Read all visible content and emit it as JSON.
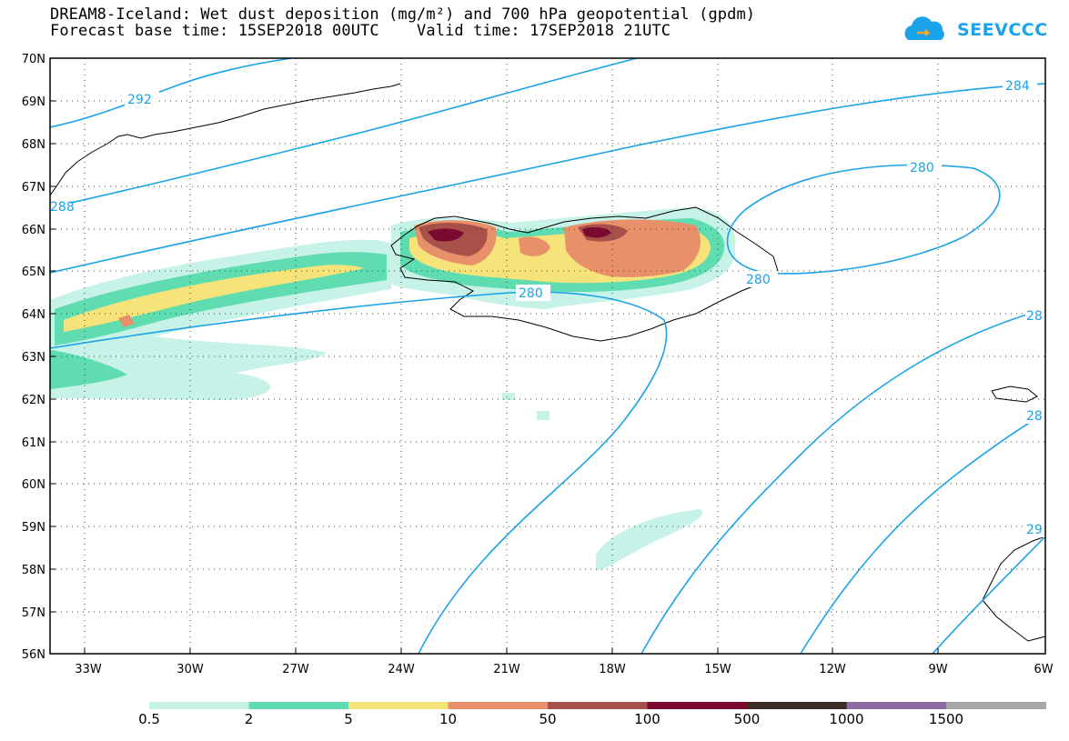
{
  "title_line1": "DREAM8-Iceland: Wet dust deposition (mg/m²) and 700 hPa geopotential (gpdm)",
  "title_line2": "Forecast base time: 15SEP2018 00UTC    Valid time: 17SEP2018 21UTC",
  "logo_text": "SEEVCCC",
  "logo_icon": "cloud-icon",
  "lat_labels": [
    "70N",
    "69N",
    "68N",
    "67N",
    "66N",
    "65N",
    "64N",
    "63N",
    "62N",
    "61N",
    "60N",
    "59N",
    "58N",
    "57N",
    "56N"
  ],
  "lon_labels": [
    "33W",
    "30W",
    "27W",
    "24W",
    "21W",
    "18W",
    "15W",
    "12W",
    "9W",
    "6W"
  ],
  "contour_labels": [
    "292",
    "284",
    "280",
    "288",
    "280",
    "280",
    "28",
    "28",
    "29"
  ],
  "legend": {
    "labels": [
      "0.5",
      "2",
      "5",
      "10",
      "50",
      "100",
      "500",
      "1000",
      "1500"
    ],
    "colors": [
      "#c6f2e8",
      "#5fdcb0",
      "#f6e37a",
      "#e8906a",
      "#a8504a",
      "#7a0a30",
      "#3c2a26",
      "#8a6aa0",
      "#a8a8a8"
    ]
  },
  "contour_color": "#1aa3e8"
}
